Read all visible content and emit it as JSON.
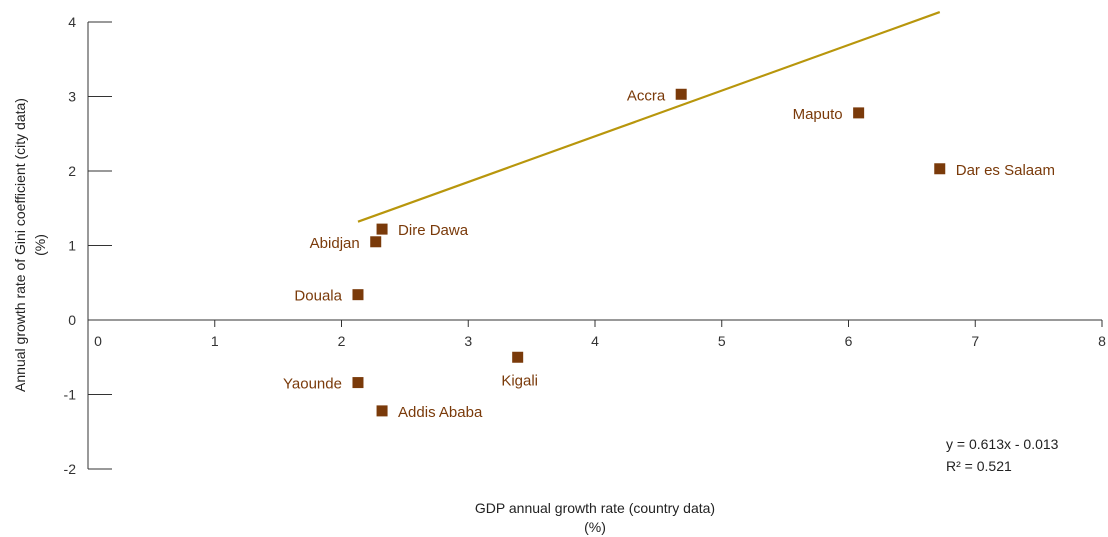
{
  "chart_data": {
    "type": "scatter",
    "xlabel_line1": "GDP annual growth rate (country data)",
    "xlabel_line2": "(%)",
    "ylabel_line1": "Annual growth rate of Gini coefficient (city data)",
    "ylabel_line2": "(%)",
    "xlim": [
      0,
      8
    ],
    "ylim": [
      -2,
      4
    ],
    "xticks": [
      0,
      1,
      2,
      3,
      4,
      5,
      6,
      7,
      8
    ],
    "yticks": [
      -2,
      -1,
      0,
      1,
      2,
      3,
      4
    ],
    "grid": false,
    "colors": {
      "marker": "#7a3a0a",
      "trend": "#b8960c",
      "axis": "#333333"
    },
    "points": [
      {
        "label": "Accra",
        "x": 4.68,
        "y": 3.03,
        "label_side": "left"
      },
      {
        "label": "Maputo",
        "x": 6.08,
        "y": 2.78,
        "label_side": "left"
      },
      {
        "label": "Dar es Salaam",
        "x": 6.72,
        "y": 2.03,
        "label_side": "right"
      },
      {
        "label": "Dire Dawa",
        "x": 2.32,
        "y": 1.22,
        "label_side": "right"
      },
      {
        "label": "Abidjan",
        "x": 2.27,
        "y": 1.05,
        "label_side": "left"
      },
      {
        "label": "Douala",
        "x": 2.13,
        "y": 0.34,
        "label_side": "left"
      },
      {
        "label": "Kigali",
        "x": 3.39,
        "y": -0.5,
        "label_side": "below"
      },
      {
        "label": "Yaounde",
        "x": 2.13,
        "y": -0.84,
        "label_side": "left"
      },
      {
        "label": "Addis Ababa",
        "x": 2.32,
        "y": -1.22,
        "label_side": "right"
      }
    ],
    "trendline": {
      "slope": 0.613,
      "intercept": -0.013,
      "x_start": 2.13,
      "x_end": 6.72
    },
    "equation_text": "y = 0.613x - 0.013",
    "r2_text": "R² = 0.521"
  }
}
